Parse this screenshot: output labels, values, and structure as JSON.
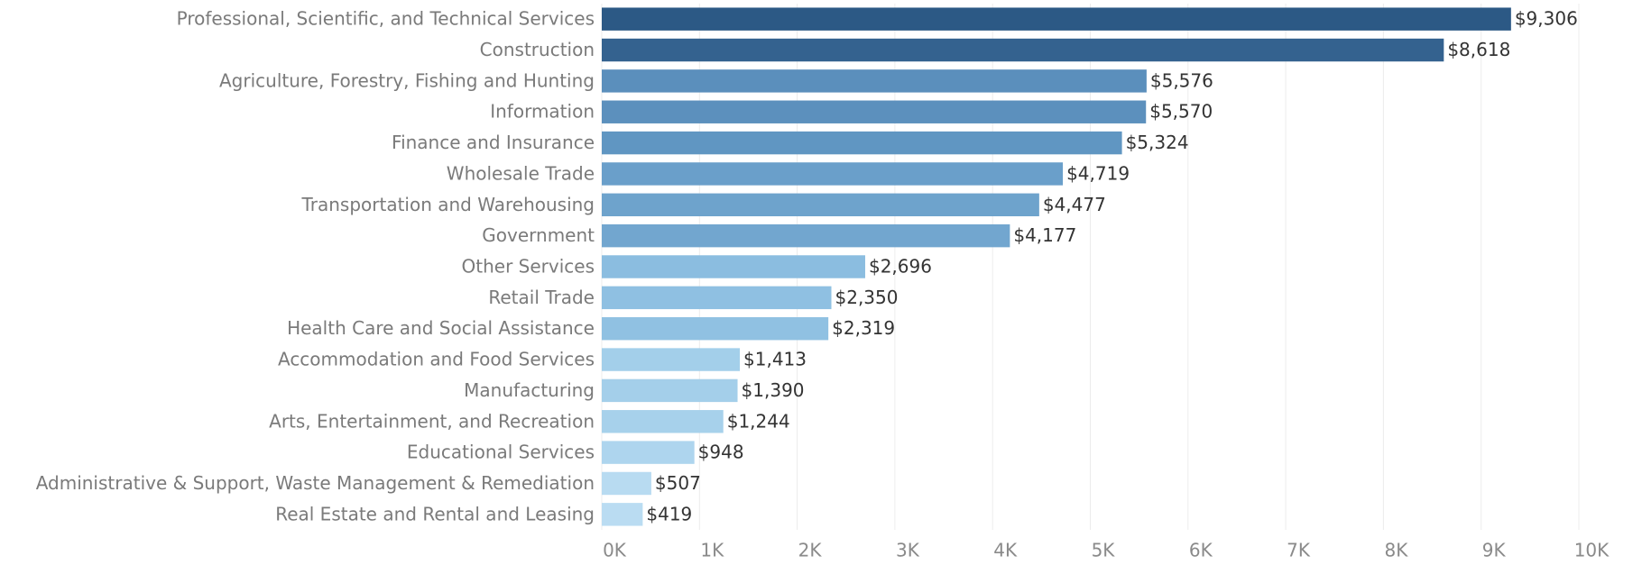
{
  "chart_data": {
    "type": "bar",
    "orientation": "horizontal",
    "categories": [
      "Professional, Scientific, and Technical Services",
      "Construction",
      "Agriculture, Forestry, Fishing and Hunting",
      "Information",
      "Finance and Insurance",
      "Wholesale Trade",
      "Transportation and Warehousing",
      "Government",
      "Other Services",
      "Retail Trade",
      "Health Care and Social Assistance",
      "Accommodation and Food Services",
      "Manufacturing",
      "Arts, Entertainment, and Recreation",
      "Educational Services",
      "Administrative & Support, Waste Management & Remediation",
      "Real Estate and Rental and Leasing"
    ],
    "values": [
      9306,
      8618,
      5576,
      5570,
      5324,
      4719,
      4477,
      4177,
      2696,
      2350,
      2319,
      1413,
      1390,
      1244,
      948,
      507,
      419
    ],
    "value_labels": [
      "$9,306",
      "$8,618",
      "$5,576",
      "$5,570",
      "$5,324",
      "$4,719",
      "$4,477",
      "$4,177",
      "$2,696",
      "$2,350",
      "$2,319",
      "$1,413",
      "$1,390",
      "$1,244",
      "$948",
      "$507",
      "$419"
    ],
    "colors": [
      "#2c5985",
      "#34628f",
      "#5b8fbc",
      "#5c90bd",
      "#6096c2",
      "#6a9fca",
      "#6ea3cc",
      "#72a6cf",
      "#8bbde0",
      "#8fc0e2",
      "#90c1e2",
      "#a3cfea",
      "#a4cfea",
      "#a7d1eb",
      "#aed5ee",
      "#b8dbf1",
      "#badcf2"
    ],
    "xlim": [
      0,
      10000
    ],
    "xticks": [
      {
        "value": 0,
        "label": "0K"
      },
      {
        "value": 1000,
        "label": "1K"
      },
      {
        "value": 2000,
        "label": "2K"
      },
      {
        "value": 3000,
        "label": "3K"
      },
      {
        "value": 4000,
        "label": "4K"
      },
      {
        "value": 5000,
        "label": "5K"
      },
      {
        "value": 6000,
        "label": "6K"
      },
      {
        "value": 7000,
        "label": "7K"
      },
      {
        "value": 8000,
        "label": "8K"
      },
      {
        "value": 9000,
        "label": "9K"
      },
      {
        "value": 10000,
        "label": "10K"
      }
    ],
    "grid": true
  }
}
